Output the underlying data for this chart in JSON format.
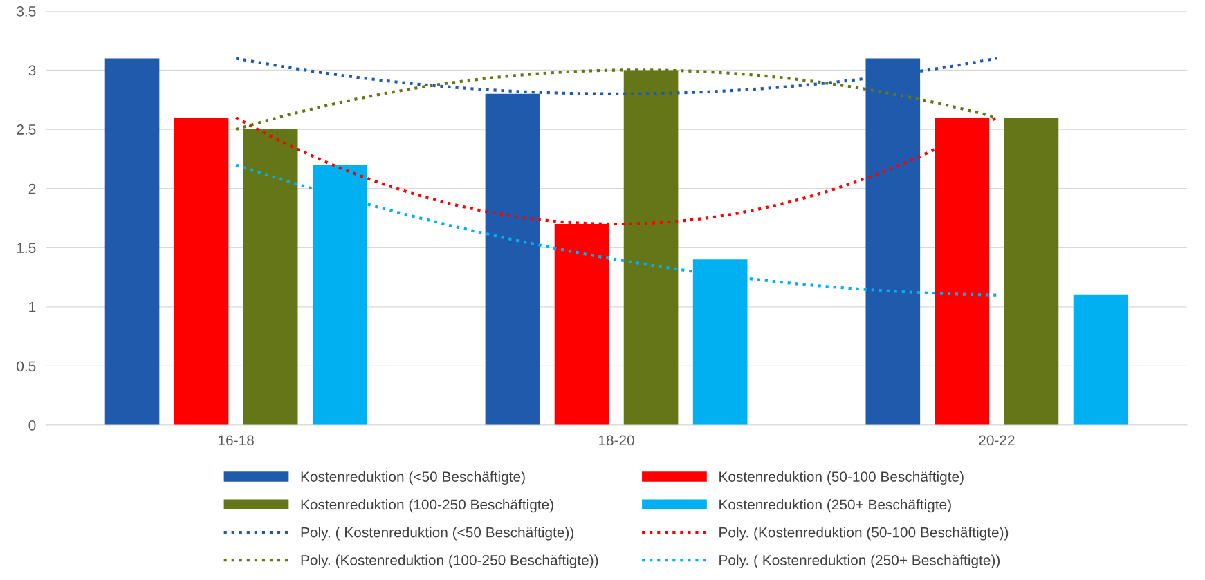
{
  "chart_data": {
    "type": "bar",
    "categories": [
      "16-18",
      "18-20",
      "20-22"
    ],
    "series": [
      {
        "name": "Kostenreduktion (<50 Beschäftigte)",
        "color": "#1f5aad",
        "values": [
          3.1,
          2.8,
          3.1
        ]
      },
      {
        "name": "Kostenreduktion (50-100 Beschäftigte)",
        "color": "#ff0000",
        "values": [
          2.6,
          1.7,
          2.6
        ]
      },
      {
        "name": "Kostenreduktion (100-250 Beschäftigte)",
        "color": "#647618",
        "values": [
          2.5,
          3.0,
          2.6
        ]
      },
      {
        "name": "Kostenreduktion (250+ Beschäftigte)",
        "color": "#00b0f0",
        "values": [
          2.2,
          1.4,
          1.1
        ]
      },
      {
        "name": "Poly. ( Kostenreduktion (<50 Beschäftigte))",
        "type": "line",
        "line_style": "dotted",
        "color": "#1f5aad",
        "values": [
          3.1,
          2.8,
          3.1
        ]
      },
      {
        "name": "Poly. (Kostenreduktion (50-100 Beschäftigte))",
        "type": "line",
        "line_style": "dotted",
        "color": "#ff0000",
        "values": [
          2.6,
          1.7,
          2.6
        ]
      },
      {
        "name": "Poly. (Kostenreduktion (100-250 Beschäftigte))",
        "type": "line",
        "line_style": "dotted",
        "color": "#647618",
        "values": [
          2.5,
          3.0,
          2.6
        ]
      },
      {
        "name": "Poly. ( Kostenreduktion (250+ Beschäftigte))",
        "type": "line",
        "line_style": "dotted",
        "color": "#00b0f0",
        "values": [
          2.2,
          1.4,
          1.1
        ]
      }
    ],
    "ylim": [
      0,
      3.5
    ],
    "yticks": [
      0,
      0.5,
      1,
      1.5,
      2,
      2.5,
      3,
      3.5
    ],
    "grid": "y",
    "legend": "bottom"
  }
}
